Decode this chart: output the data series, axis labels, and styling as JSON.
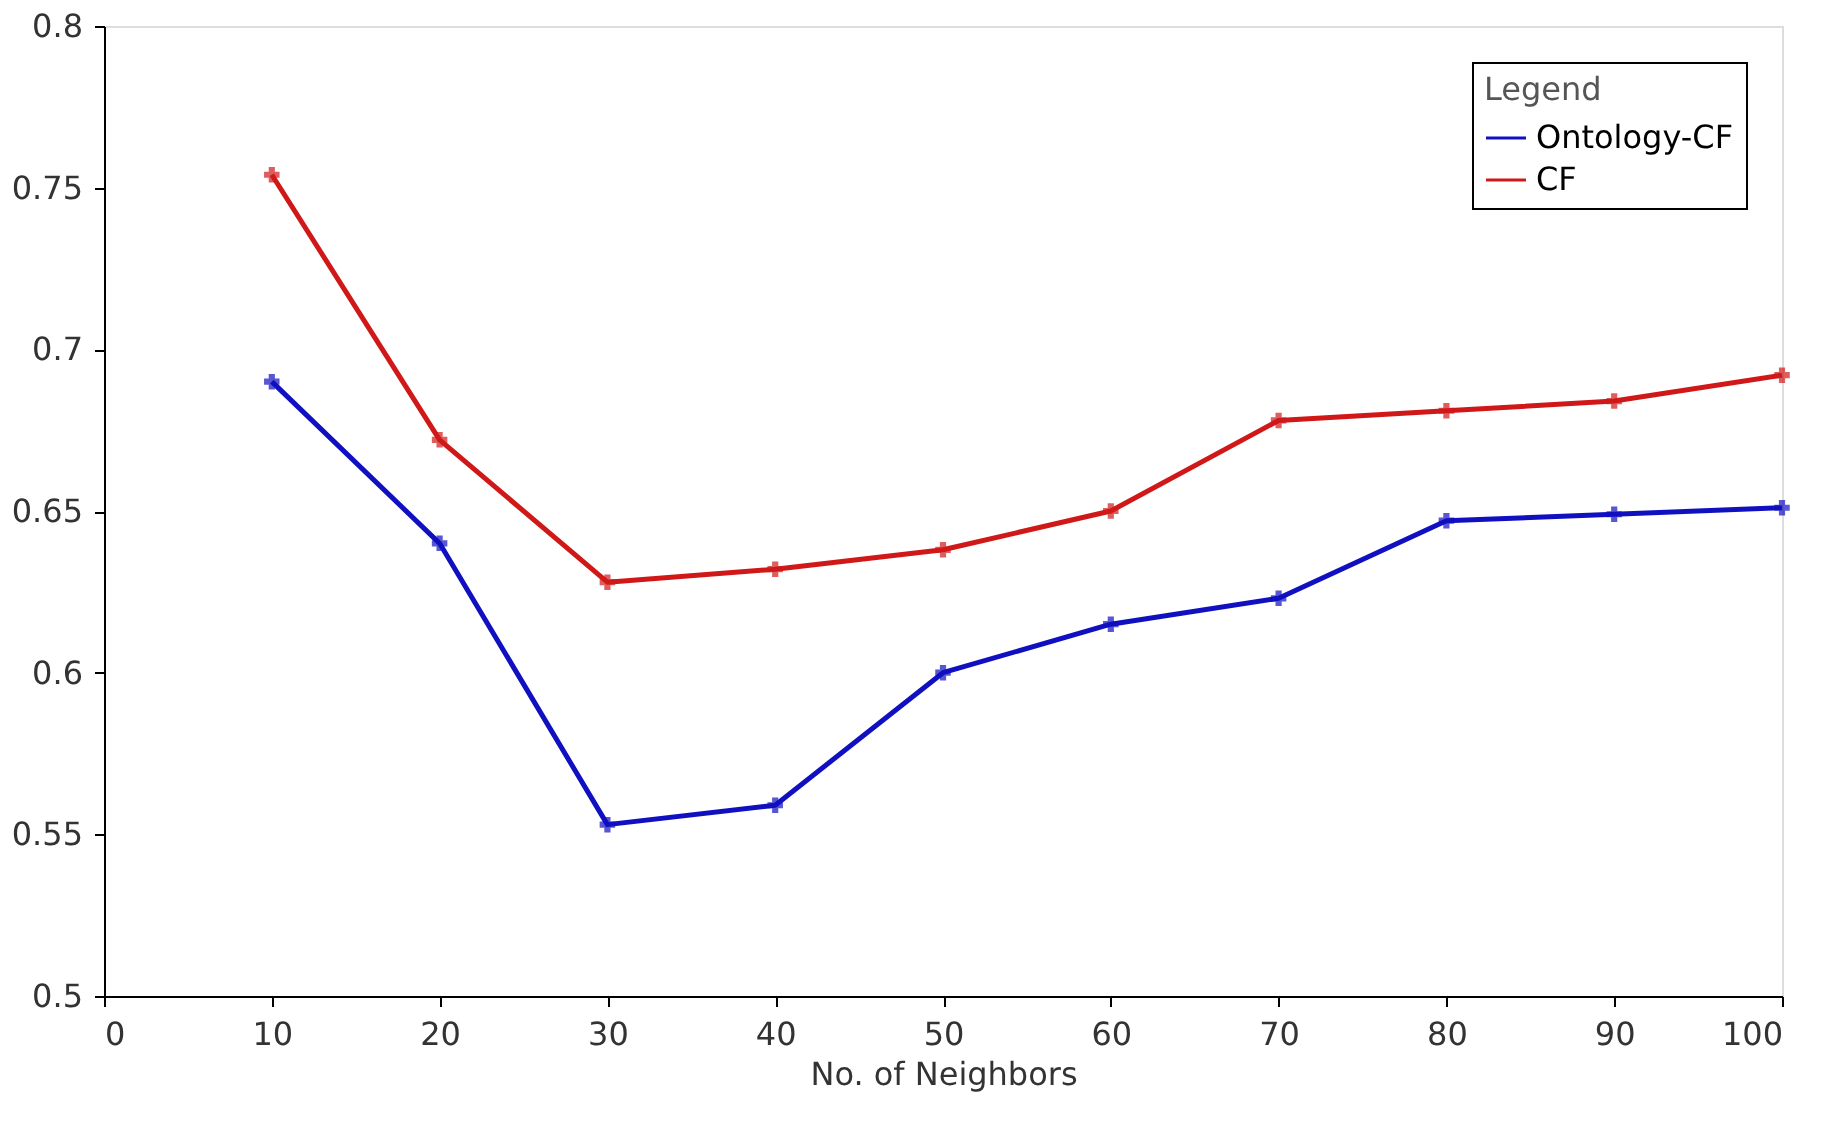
{
  "chart_data": {
    "type": "line",
    "xlabel": "No. of Neighbors",
    "legend_title": "Legend",
    "legend": "top right",
    "marker": "cross",
    "line_style": "solid",
    "grid": false,
    "x": [
      10,
      20,
      30,
      40,
      50,
      60,
      70,
      80,
      90,
      100
    ],
    "xlim": [
      0,
      100
    ],
    "xticks": [
      0,
      10,
      20,
      30,
      40,
      50,
      60,
      70,
      80,
      90,
      100
    ],
    "ylim": [
      0.5,
      0.8
    ],
    "yticks": [
      0.5,
      0.55,
      0.6,
      0.65,
      0.7,
      0.75,
      0.8
    ],
    "series": [
      {
        "name": "Ontology-CF",
        "color": "#1010c0",
        "values": [
          0.69,
          0.64,
          0.553,
          0.559,
          0.6,
          0.615,
          0.623,
          0.647,
          0.649,
          0.651
        ]
      },
      {
        "name": "CF",
        "color": "#d01818",
        "values": [
          0.754,
          0.672,
          0.628,
          0.632,
          0.638,
          0.65,
          0.678,
          0.681,
          0.684,
          0.692
        ]
      }
    ]
  }
}
